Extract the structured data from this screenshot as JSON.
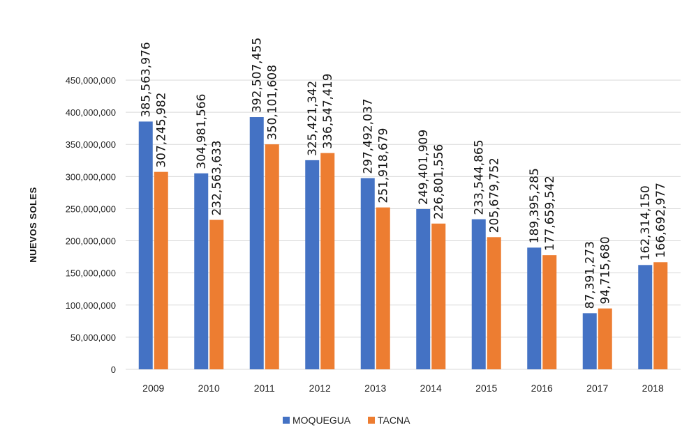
{
  "chart_data": {
    "type": "bar",
    "title": "",
    "xlabel": "",
    "ylabel": "NUEVOS SOLES",
    "ylim": [
      0,
      450000000
    ],
    "yticks": [
      0,
      50000000,
      100000000,
      150000000,
      200000000,
      250000000,
      300000000,
      350000000,
      400000000,
      450000000
    ],
    "ytick_labels": [
      "0",
      "50,000,000",
      "100,000,000",
      "150,000,000",
      "200,000,000",
      "250,000,000",
      "300,000,000",
      "350,000,000",
      "400,000,000",
      "450,000,000"
    ],
    "grid": true,
    "legend_position": "bottom",
    "categories": [
      "2009",
      "2010",
      "2011",
      "2012",
      "2013",
      "2014",
      "2015",
      "2016",
      "2017",
      "2018"
    ],
    "series": [
      {
        "name": "MOQUEGUA",
        "color": "#4472c4",
        "values": [
          385563976,
          304981566,
          392507455,
          325421342,
          297492037,
          249401909,
          233544865,
          189395285,
          87391273,
          162314150
        ],
        "labels": [
          "385,563,976",
          "304,981,566",
          "392,507,455",
          "325,421,342",
          "297,492,037",
          "249,401,909",
          "233,544,865",
          "189,395,285",
          "87,391,273",
          "162,314,150"
        ]
      },
      {
        "name": "TACNA",
        "color": "#ed7d31",
        "values": [
          307245982,
          232563633,
          350101608,
          336547419,
          251918679,
          226801556,
          205679752,
          177659542,
          94715680,
          166692977
        ],
        "labels": [
          "307,245,982",
          "232,563,633",
          "350,101,608",
          "336,547,419",
          "251,918,679",
          "226,801,556",
          "205,679,752",
          "177,659,542",
          "94,715,680",
          "166,692,977"
        ]
      }
    ]
  }
}
